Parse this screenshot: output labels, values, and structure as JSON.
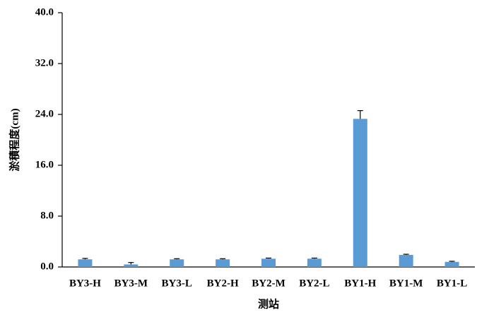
{
  "chart_data": {
    "type": "bar",
    "y_label": "淤積程度(cm)",
    "x_label": "测站",
    "categories": [
      "BY3-H",
      "BY3-M",
      "BY3-L",
      "BY2-H",
      "BY2-M",
      "BY2-L",
      "BY1-H",
      "BY1-M",
      "BY1-L"
    ],
    "values": [
      1.2,
      0.4,
      1.2,
      1.2,
      1.3,
      1.3,
      23.3,
      1.9,
      0.8
    ],
    "errors": [
      0.15,
      0.3,
      0.1,
      0.1,
      0.1,
      0.1,
      1.3,
      0.1,
      0.1
    ],
    "color": "#5b9bd5",
    "ylim": [
      0,
      40
    ],
    "yticks": [
      {
        "value": 0,
        "label": "0.0"
      },
      {
        "value": 8,
        "label": "8.0"
      },
      {
        "value": 16,
        "label": "16.0"
      },
      {
        "value": 24,
        "label": "24.0"
      },
      {
        "value": 32,
        "label": "32.0"
      },
      {
        "value": 40,
        "label": "40.0"
      }
    ]
  }
}
